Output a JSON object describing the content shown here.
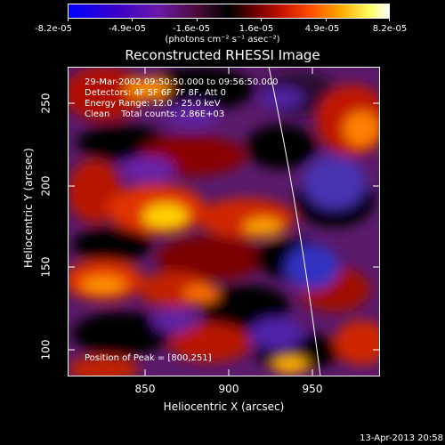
{
  "colorbar": {
    "ticks": [
      "-8.2e-05",
      "-4.9e-05",
      "-1.6e-05",
      "1.6e-05",
      "4.9e-05",
      "8.2e-05"
    ],
    "units": "(photons cm⁻² s⁻¹ asec⁻²)"
  },
  "title": "Reconstructed RHESSI Image",
  "annotations": {
    "time": "29-Mar-2002 09:50:50.000 to 09:56:50.000",
    "detectors": "Detectors: 4F 5F 6F 7F 8F, Att 0",
    "energy": "Energy Range: 12.0 - 25.0 keV",
    "clean": "Clean    Total counts: 2.86E+03",
    "peak": "Position of Peak = [800,251]"
  },
  "axes": {
    "xlabel": "Heliocentric X (arcsec)",
    "ylabel": "Heliocentric Y (arcsec)",
    "xticks": [
      "850",
      "900",
      "950"
    ],
    "yticks": [
      "250",
      "200",
      "150",
      "100"
    ]
  },
  "footer": {
    "timestamp": "13-Apr-2013 20:58"
  },
  "colors": {
    "background": "#000000",
    "text": "#ffffff",
    "limb": "#ffffff"
  }
}
